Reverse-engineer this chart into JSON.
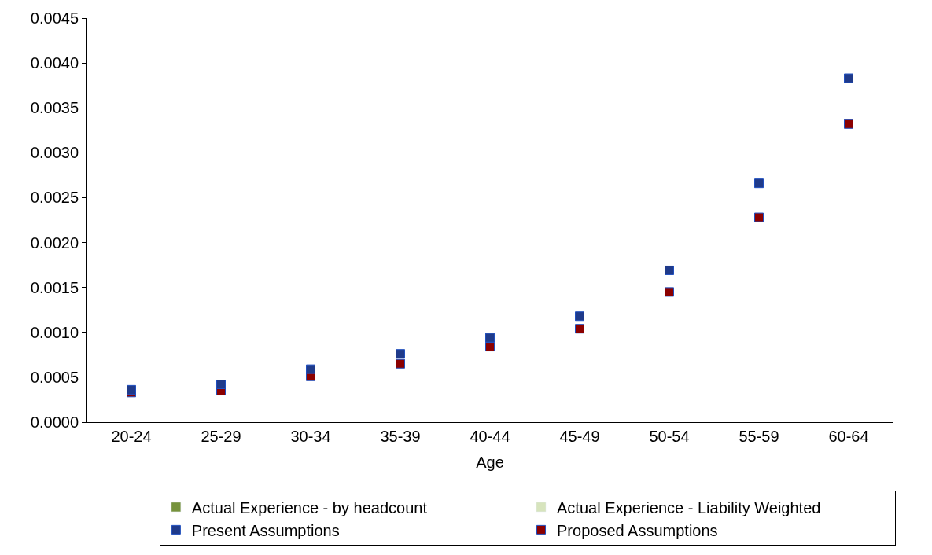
{
  "chart_data": {
    "type": "scatter",
    "xlabel": "Age",
    "categories": [
      "20-24",
      "25-29",
      "30-34",
      "35-39",
      "40-44",
      "45-49",
      "50-54",
      "55-59",
      "60-64"
    ],
    "series": [
      {
        "name": "Actual Experience - by headcount",
        "type": "bar",
        "color": "#77933c",
        "values": [
          null,
          null,
          null,
          null,
          null,
          null,
          null,
          null,
          null
        ]
      },
      {
        "name": "Actual Experience - Liability Weighted",
        "type": "bar",
        "color": "#d7e4bd",
        "values": [
          null,
          null,
          null,
          null,
          null,
          null,
          null,
          null,
          null
        ]
      },
      {
        "name": "Present Assumptions",
        "color": "#1f3a8a",
        "values": [
          0.00036,
          0.00042,
          0.00059,
          0.00076,
          0.00094,
          0.00118,
          0.00169,
          0.00266,
          0.00383
        ]
      },
      {
        "name": "Proposed Assumptions",
        "color": "#8b0000",
        "values": [
          0.00033,
          0.00035,
          0.00051,
          0.00065,
          0.00084,
          0.00104,
          0.00145,
          0.00228,
          0.00332
        ]
      }
    ],
    "ylim": [
      0,
      0.0045
    ],
    "yticks": [
      {
        "value": 0,
        "label": "0.0000"
      },
      {
        "value": 0.0005,
        "label": "0.0005"
      },
      {
        "value": 0.001,
        "label": "0.0010"
      },
      {
        "value": 0.0015,
        "label": "0.0015"
      },
      {
        "value": 0.002,
        "label": "0.0020"
      },
      {
        "value": 0.0025,
        "label": "0.0025"
      },
      {
        "value": 0.003,
        "label": "0.0030"
      },
      {
        "value": 0.0035,
        "label": "0.0035"
      },
      {
        "value": 0.004,
        "label": "0.0040"
      },
      {
        "value": 0.0045,
        "label": "0.0045"
      }
    ],
    "legend": "bottom",
    "marker": "square",
    "grid": false
  }
}
